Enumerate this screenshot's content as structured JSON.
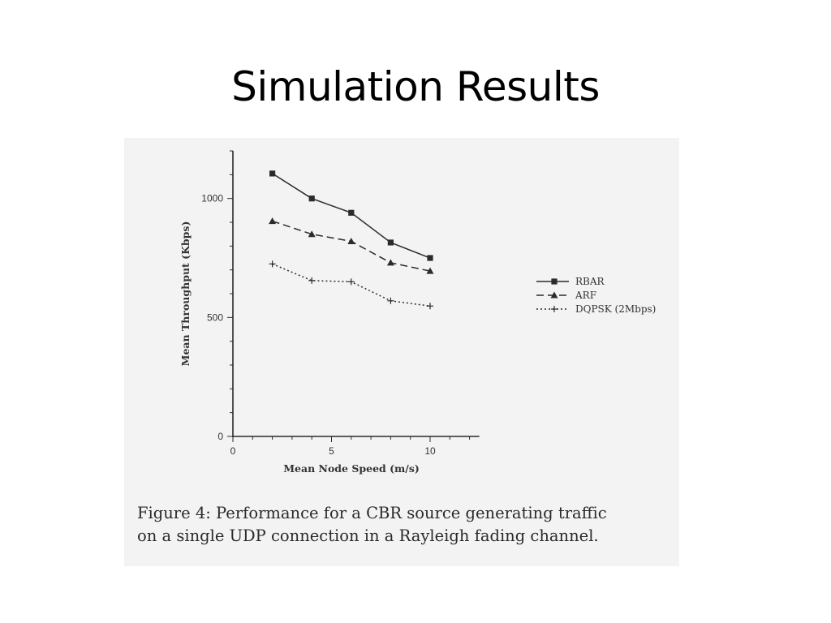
{
  "slide": {
    "title": "Simulation Results"
  },
  "chart_data": {
    "type": "line",
    "title": "",
    "xlabel": "Mean Node Speed (m/s)",
    "ylabel": "Mean Throughput (Kbps)",
    "xlim": [
      0,
      12
    ],
    "ylim": [
      0,
      1200
    ],
    "xticks": [
      0,
      5,
      10
    ],
    "yticks": [
      0,
      500,
      1000
    ],
    "grid": false,
    "legend_position": "right",
    "x": [
      2,
      4,
      6,
      8,
      10
    ],
    "series": [
      {
        "name": "RBAR",
        "marker": "square",
        "dash": "solid",
        "values": [
          1105,
          1000,
          940,
          815,
          750
        ]
      },
      {
        "name": "ARF",
        "marker": "triangle",
        "dash": "dashed",
        "values": [
          905,
          850,
          820,
          730,
          695
        ]
      },
      {
        "name": "DQPSK (2Mbps)",
        "marker": "plus",
        "dash": "dotted",
        "values": [
          725,
          655,
          650,
          570,
          548
        ]
      }
    ],
    "caption": [
      "Figure 4: Performance for a CBR source generating traffic",
      "on a single UDP connection in a Rayleigh fading channel."
    ],
    "colors": {
      "ink": "#2b2b2b",
      "paper": "#f3f3f3"
    }
  }
}
